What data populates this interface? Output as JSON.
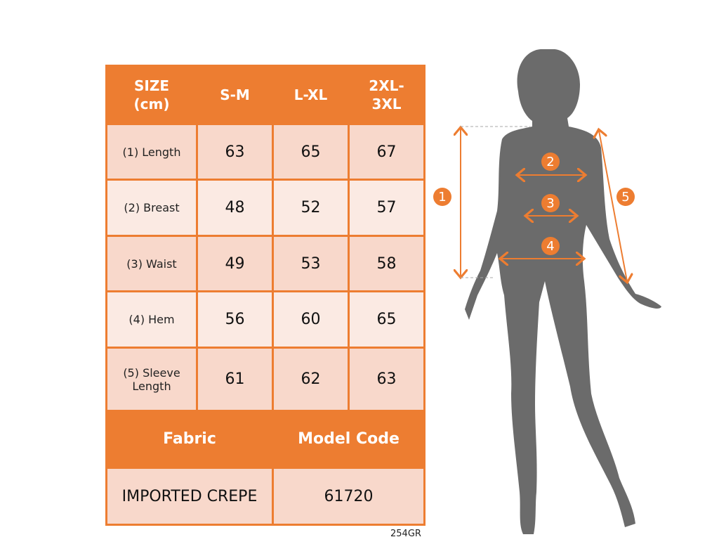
{
  "table": {
    "headers": [
      "SIZE (cm)",
      "S-M",
      "L-XL",
      "2XL-3XL"
    ],
    "header_lines": [
      [
        "SIZE",
        "(cm)"
      ],
      [
        "S-M"
      ],
      [
        "L-XL"
      ],
      [
        "2XL-",
        "3XL"
      ]
    ],
    "rows": [
      {
        "label": "(1) Length",
        "values": [
          "63",
          "65",
          "67"
        ]
      },
      {
        "label": "(2) Breast",
        "values": [
          "48",
          "52",
          "57"
        ]
      },
      {
        "label": "(3) Waist",
        "values": [
          "49",
          "53",
          "58"
        ]
      },
      {
        "label": "(4) Hem",
        "values": [
          "56",
          "60",
          "65"
        ]
      },
      {
        "label": "(5) Sleeve Length",
        "label_lines": [
          "(5) Sleeve",
          "Length"
        ],
        "values": [
          "61",
          "62",
          "63"
        ]
      }
    ],
    "footer_headers": [
      "Fabric",
      "Model Code"
    ],
    "footer_values": [
      "IMPORTED CREPE",
      "61720"
    ]
  },
  "product_code": "254GR",
  "figure": {
    "markers": [
      "1",
      "2",
      "3",
      "4",
      "5"
    ]
  },
  "colors": {
    "accent": "#ED7D31",
    "cell_dark": "#F8D8CB",
    "cell_light": "#FBEAE3",
    "silhouette": "#6b6b6b"
  }
}
